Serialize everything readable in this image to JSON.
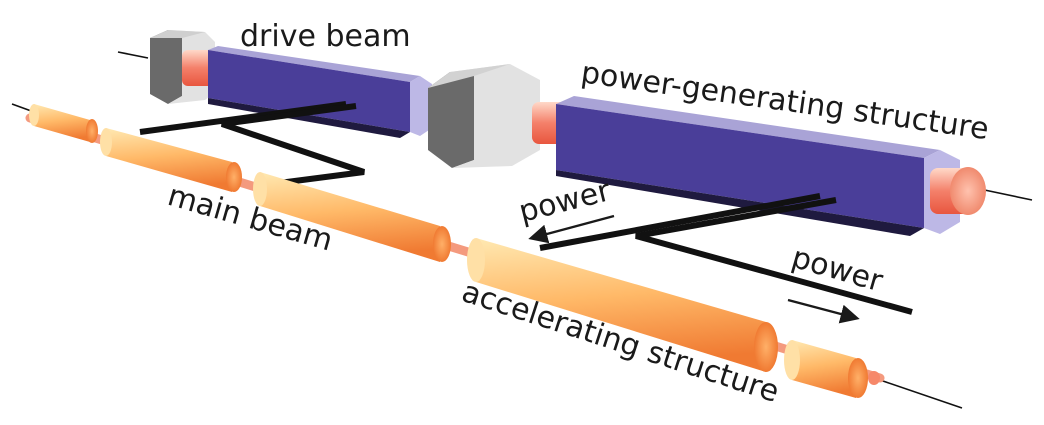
{
  "labels": {
    "drive_beam": "drive beam",
    "power_generating_structure": "power-generating structure",
    "power_upper": "power",
    "power_lower": "power",
    "main_beam": "main beam",
    "accelerating_structure": "accelerating structure"
  },
  "colors": {
    "block_front": "#4a3e99",
    "block_top": "#a9a3d6",
    "block_bottom": "#1f1a3f",
    "block_end": "#bdb8e6",
    "quad_face": "#e0e0e0",
    "quad_side": "#6a6a6a",
    "pipe_red": "#ef6f5a",
    "pipe_highlight": "#ffd9c9",
    "cavity_light": "#ffe9b2",
    "cavity_dark": "#f07a32",
    "waveguide": "#111111"
  }
}
